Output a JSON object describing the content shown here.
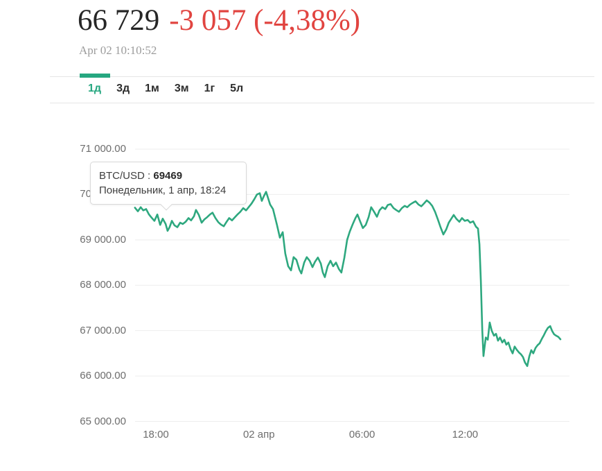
{
  "header": {
    "price": "66 729",
    "change": "-3 057 (-4,38%)",
    "timestamp": "Apr 02 10:10:52"
  },
  "tabs": {
    "items": [
      {
        "label": "1д",
        "active": true
      },
      {
        "label": "3д",
        "active": false
      },
      {
        "label": "1м",
        "active": false
      },
      {
        "label": "3м",
        "active": false
      },
      {
        "label": "1г",
        "active": false
      },
      {
        "label": "5л",
        "active": false
      }
    ]
  },
  "tooltip": {
    "pair": "BTC/USD",
    "separator": " : ",
    "value": "69469",
    "date": "Понедельник, 1 апр, 18:24"
  },
  "colors": {
    "accent_green": "#26a780",
    "negative_red": "#e14440",
    "line_green": "#2ea87f",
    "grid_gray": "#ededed",
    "axis_text": "#6d6d6d"
  },
  "chart_data": {
    "type": "line",
    "symbol": "BTC/USD",
    "line_color": "#2ea87f",
    "grid": true,
    "ylim": [
      65000,
      71000
    ],
    "y_ticks": [
      {
        "label": "71 000.00",
        "value": 71000
      },
      {
        "label": "70 000.00",
        "value": 70000
      },
      {
        "label": "69 000.00",
        "value": 69000
      },
      {
        "label": "68 000.00",
        "value": 68000
      },
      {
        "label": "67 000.00",
        "value": 67000
      },
      {
        "label": "66 000.00",
        "value": 66000
      },
      {
        "label": "65 000.00",
        "value": 65000
      }
    ],
    "x_ticks": [
      {
        "label": "18:00",
        "minutes": 1080
      },
      {
        "label": "02 апр",
        "minutes": 1440
      },
      {
        "label": "06:00",
        "minutes": 1800
      },
      {
        "label": "12:00",
        "minutes": 2160
      }
    ],
    "series": [
      {
        "name": "BTC/USD",
        "points": [
          [
            "16:47",
            69710
          ],
          [
            "16:57",
            69630
          ],
          [
            "17:07",
            69720
          ],
          [
            "17:16",
            69650
          ],
          [
            "17:26",
            69680
          ],
          [
            "17:36",
            69560
          ],
          [
            "17:45",
            69490
          ],
          [
            "17:55",
            69420
          ],
          [
            "18:05",
            69560
          ],
          [
            "18:15",
            69330
          ],
          [
            "18:24",
            69469
          ],
          [
            "18:34",
            69350
          ],
          [
            "18:41",
            69200
          ],
          [
            "18:48",
            69280
          ],
          [
            "18:56",
            69420
          ],
          [
            "19:05",
            69320
          ],
          [
            "19:15",
            69280
          ],
          [
            "19:25",
            69380
          ],
          [
            "19:34",
            69350
          ],
          [
            "19:44",
            69400
          ],
          [
            "19:54",
            69480
          ],
          [
            "20:03",
            69430
          ],
          [
            "20:13",
            69520
          ],
          [
            "20:20",
            69660
          ],
          [
            "20:30",
            69550
          ],
          [
            "20:40",
            69380
          ],
          [
            "20:49",
            69450
          ],
          [
            "20:59",
            69500
          ],
          [
            "21:09",
            69560
          ],
          [
            "21:18",
            69600
          ],
          [
            "21:28",
            69480
          ],
          [
            "21:38",
            69390
          ],
          [
            "21:47",
            69340
          ],
          [
            "21:57",
            69300
          ],
          [
            "22:07",
            69400
          ],
          [
            "22:16",
            69480
          ],
          [
            "22:26",
            69430
          ],
          [
            "22:36",
            69500
          ],
          [
            "22:45",
            69560
          ],
          [
            "22:55",
            69620
          ],
          [
            "23:05",
            69700
          ],
          [
            "23:15",
            69650
          ],
          [
            "23:24",
            69720
          ],
          [
            "23:34",
            69800
          ],
          [
            "23:44",
            69900
          ],
          [
            "23:53",
            70000
          ],
          [
            "00:03",
            70030
          ],
          [
            "00:10",
            69860
          ],
          [
            "00:17",
            69960
          ],
          [
            "00:25",
            70060
          ],
          [
            "00:32",
            69920
          ],
          [
            "00:39",
            69780
          ],
          [
            "00:49",
            69680
          ],
          [
            "01:03",
            69330
          ],
          [
            "01:13",
            69050
          ],
          [
            "01:23",
            69170
          ],
          [
            "01:32",
            68700
          ],
          [
            "01:42",
            68420
          ],
          [
            "01:52",
            68330
          ],
          [
            "02:01",
            68620
          ],
          [
            "02:11",
            68560
          ],
          [
            "02:21",
            68350
          ],
          [
            "02:28",
            68260
          ],
          [
            "02:38",
            68500
          ],
          [
            "02:47",
            68620
          ],
          [
            "02:57",
            68540
          ],
          [
            "03:07",
            68400
          ],
          [
            "03:16",
            68520
          ],
          [
            "03:26",
            68610
          ],
          [
            "03:36",
            68480
          ],
          [
            "03:43",
            68280
          ],
          [
            "03:50",
            68180
          ],
          [
            "04:00",
            68420
          ],
          [
            "04:10",
            68540
          ],
          [
            "04:19",
            68420
          ],
          [
            "04:29",
            68500
          ],
          [
            "04:39",
            68360
          ],
          [
            "04:48",
            68280
          ],
          [
            "04:58",
            68600
          ],
          [
            "05:08",
            69000
          ],
          [
            "05:17",
            69180
          ],
          [
            "05:27",
            69340
          ],
          [
            "05:37",
            69480
          ],
          [
            "05:44",
            69560
          ],
          [
            "05:54",
            69400
          ],
          [
            "06:03",
            69260
          ],
          [
            "06:13",
            69330
          ],
          [
            "06:23",
            69500
          ],
          [
            "06:32",
            69720
          ],
          [
            "06:42",
            69620
          ],
          [
            "06:52",
            69510
          ],
          [
            "07:01",
            69650
          ],
          [
            "07:11",
            69720
          ],
          [
            "07:21",
            69680
          ],
          [
            "07:30",
            69770
          ],
          [
            "07:40",
            69790
          ],
          [
            "07:50",
            69700
          ],
          [
            "07:59",
            69660
          ],
          [
            "08:09",
            69620
          ],
          [
            "08:19",
            69700
          ],
          [
            "08:29",
            69750
          ],
          [
            "08:38",
            69720
          ],
          [
            "08:48",
            69780
          ],
          [
            "08:58",
            69820
          ],
          [
            "09:07",
            69850
          ],
          [
            "09:17",
            69780
          ],
          [
            "09:27",
            69740
          ],
          [
            "09:36",
            69800
          ],
          [
            "09:46",
            69870
          ],
          [
            "09:56",
            69820
          ],
          [
            "10:05",
            69750
          ],
          [
            "10:15",
            69620
          ],
          [
            "10:25",
            69450
          ],
          [
            "10:34",
            69280
          ],
          [
            "10:44",
            69120
          ],
          [
            "10:54",
            69230
          ],
          [
            "11:03",
            69380
          ],
          [
            "11:13",
            69480
          ],
          [
            "11:20",
            69550
          ],
          [
            "11:30",
            69460
          ],
          [
            "11:40",
            69400
          ],
          [
            "11:49",
            69480
          ],
          [
            "11:59",
            69420
          ],
          [
            "12:09",
            69440
          ],
          [
            "12:18",
            69380
          ],
          [
            "12:28",
            69410
          ],
          [
            "12:38",
            69290
          ],
          [
            "12:45",
            69250
          ],
          [
            "12:50",
            68900
          ],
          [
            "12:55",
            68100
          ],
          [
            "13:00",
            67000
          ],
          [
            "13:04",
            66440
          ],
          [
            "13:12",
            66850
          ],
          [
            "13:19",
            66800
          ],
          [
            "13:26",
            67180
          ],
          [
            "13:33",
            67000
          ],
          [
            "13:41",
            66890
          ],
          [
            "13:48",
            66930
          ],
          [
            "13:55",
            66780
          ],
          [
            "14:02",
            66850
          ],
          [
            "14:10",
            66740
          ],
          [
            "14:17",
            66800
          ],
          [
            "14:24",
            66690
          ],
          [
            "14:31",
            66740
          ],
          [
            "14:39",
            66590
          ],
          [
            "14:46",
            66500
          ],
          [
            "14:53",
            66650
          ],
          [
            "15:00",
            66580
          ],
          [
            "15:08",
            66520
          ],
          [
            "15:15",
            66480
          ],
          [
            "15:22",
            66420
          ],
          [
            "15:29",
            66300
          ],
          [
            "15:37",
            66220
          ],
          [
            "15:44",
            66430
          ],
          [
            "15:51",
            66570
          ],
          [
            "15:58",
            66500
          ],
          [
            "16:06",
            66620
          ],
          [
            "16:13",
            66680
          ],
          [
            "16:20",
            66720
          ],
          [
            "16:28",
            66820
          ],
          [
            "16:35",
            66900
          ],
          [
            "16:42",
            66990
          ],
          [
            "16:49",
            67060
          ],
          [
            "16:57",
            67100
          ],
          [
            "17:04",
            66990
          ],
          [
            "17:11",
            66920
          ],
          [
            "17:18",
            66890
          ],
          [
            "17:26",
            66860
          ],
          [
            "17:33",
            66810
          ]
        ]
      }
    ]
  }
}
